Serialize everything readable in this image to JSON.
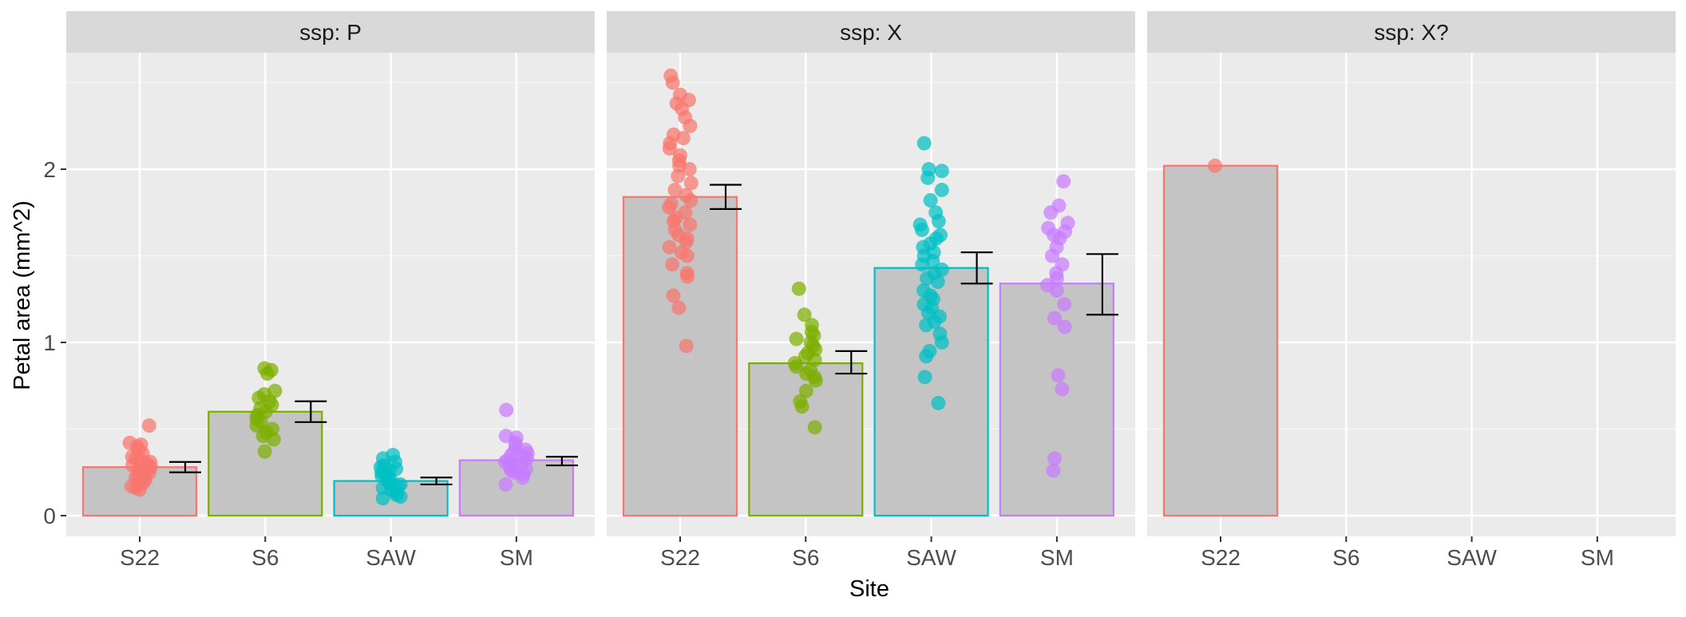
{
  "chart_data": {
    "type": "bar",
    "xlabel": "Site",
    "ylabel": "Petal area (mm^2)",
    "ylim": [
      -0.12,
      2.7
    ],
    "yticks": [
      0,
      1,
      2
    ],
    "ytick_labels": [
      "0",
      "1",
      "2"
    ],
    "grid": true,
    "categories": [
      "S22",
      "S6",
      "SAW",
      "SM"
    ],
    "colors": {
      "S22": "#F8766D",
      "S6": "#7CAE00",
      "SAW": "#00BFC4",
      "SM": "#C77CFF"
    },
    "facets": [
      {
        "label": "ssp: P",
        "bars": [
          {
            "site": "S22",
            "mean": 0.28,
            "err_low": 0.25,
            "err_high": 0.31,
            "points": [
              0.52,
              0.42,
              0.41,
              0.4,
              0.38,
              0.36,
              0.34,
              0.33,
              0.32,
              0.31,
              0.3,
              0.29,
              0.28,
              0.27,
              0.26,
              0.25,
              0.24,
              0.23,
              0.22,
              0.21,
              0.2,
              0.19,
              0.18,
              0.17,
              0.16,
              0.15
            ]
          },
          {
            "site": "S6",
            "mean": 0.6,
            "err_low": 0.54,
            "err_high": 0.66,
            "points": [
              0.85,
              0.84,
              0.82,
              0.72,
              0.7,
              0.68,
              0.66,
              0.64,
              0.62,
              0.6,
              0.58,
              0.56,
              0.54,
              0.52,
              0.5,
              0.48,
              0.46,
              0.44,
              0.37
            ]
          },
          {
            "site": "SAW",
            "mean": 0.2,
            "err_low": 0.18,
            "err_high": 0.22,
            "points": [
              0.35,
              0.33,
              0.31,
              0.29,
              0.28,
              0.27,
              0.26,
              0.25,
              0.24,
              0.23,
              0.22,
              0.21,
              0.2,
              0.19,
              0.18,
              0.17,
              0.16,
              0.15,
              0.14,
              0.13,
              0.12,
              0.11,
              0.1
            ]
          },
          {
            "site": "SM",
            "mean": 0.32,
            "err_low": 0.29,
            "err_high": 0.34,
            "points": [
              0.61,
              0.46,
              0.45,
              0.42,
              0.4,
              0.38,
              0.37,
              0.36,
              0.35,
              0.34,
              0.33,
              0.32,
              0.31,
              0.3,
              0.29,
              0.28,
              0.27,
              0.26,
              0.25,
              0.24,
              0.22,
              0.18
            ]
          }
        ]
      },
      {
        "label": "ssp: X",
        "bars": [
          {
            "site": "S22",
            "mean": 1.84,
            "err_low": 1.77,
            "err_high": 1.91,
            "points": [
              2.54,
              2.5,
              2.43,
              2.4,
              2.38,
              2.35,
              2.3,
              2.25,
              2.2,
              2.18,
              2.15,
              2.12,
              2.08,
              2.05,
              2.02,
              2.0,
              1.96,
              1.92,
              1.88,
              1.85,
              1.82,
              1.8,
              1.78,
              1.75,
              1.72,
              1.7,
              1.68,
              1.65,
              1.62,
              1.6,
              1.58,
              1.55,
              1.52,
              1.5,
              1.45,
              1.4,
              1.38,
              1.27,
              1.2,
              0.98
            ]
          },
          {
            "site": "S6",
            "mean": 0.88,
            "err_low": 0.82,
            "err_high": 0.95,
            "points": [
              1.31,
              1.16,
              1.1,
              1.06,
              1.04,
              1.02,
              1.0,
              0.98,
              0.96,
              0.94,
              0.92,
              0.9,
              0.88,
              0.86,
              0.84,
              0.82,
              0.8,
              0.78,
              0.72,
              0.66,
              0.63,
              0.51
            ]
          },
          {
            "site": "SAW",
            "mean": 1.43,
            "err_low": 1.34,
            "err_high": 1.52,
            "points": [
              2.15,
              2.0,
              1.99,
              1.95,
              1.88,
              1.82,
              1.75,
              1.7,
              1.68,
              1.65,
              1.62,
              1.6,
              1.57,
              1.55,
              1.52,
              1.5,
              1.47,
              1.45,
              1.42,
              1.4,
              1.37,
              1.35,
              1.3,
              1.27,
              1.25,
              1.22,
              1.2,
              1.17,
              1.15,
              1.12,
              1.1,
              1.05,
              1.0,
              0.95,
              0.92,
              0.8,
              0.65
            ]
          },
          {
            "site": "SM",
            "mean": 1.34,
            "err_low": 1.16,
            "err_high": 1.51,
            "points": [
              1.93,
              1.79,
              1.75,
              1.69,
              1.66,
              1.64,
              1.62,
              1.6,
              1.55,
              1.5,
              1.45,
              1.4,
              1.37,
              1.33,
              1.3,
              1.22,
              1.14,
              1.09,
              0.81,
              0.73,
              0.33,
              0.26
            ]
          }
        ]
      },
      {
        "label": "ssp: X?",
        "bars": [
          {
            "site": "S22",
            "mean": 2.02,
            "err_low": null,
            "err_high": null,
            "points": [
              2.02
            ]
          }
        ]
      }
    ]
  }
}
